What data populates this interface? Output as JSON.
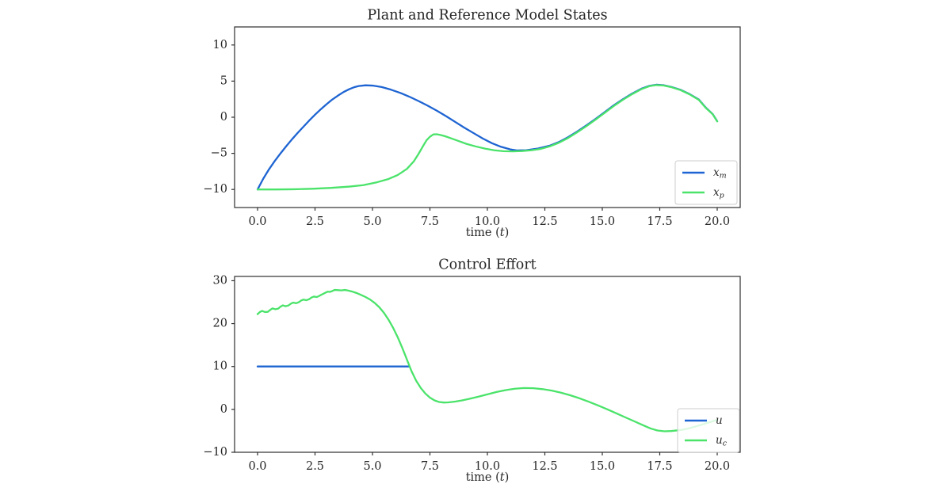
{
  "figure": {
    "background": "#ffffff",
    "text_color": "#262626",
    "spine_color": "#2e2e2e",
    "legend_border_color": "#cccccc",
    "legend_fill": "#ffffff"
  },
  "chart_data": [
    {
      "type": "line",
      "title": "Plant and Reference Model States",
      "xlabel_pre": "time (",
      "xlabel_var": "t",
      "xlabel_post": ")",
      "xlim": [
        -1,
        21
      ],
      "ylim": [
        -12.5,
        12.5
      ],
      "grid": false,
      "legend_position": "lower right",
      "x_tick_values": [
        0,
        2.5,
        5,
        7.5,
        10,
        12.5,
        15,
        17.5,
        20
      ],
      "x_tick_labels": [
        "0.0",
        "2.5",
        "5.0",
        "7.5",
        "10.0",
        "12.5",
        "15.0",
        "17.5",
        "20.0"
      ],
      "y_tick_values": [
        10,
        5,
        0,
        -5,
        -10
      ],
      "y_tick_labels": [
        "10",
        "5",
        "0",
        "−5",
        "−10"
      ],
      "series": [
        {
          "name": "x_m",
          "label_main": "x",
          "label_sub": "m",
          "color": "#1e64d2",
          "points": [
            [
              0,
              -10.0
            ],
            [
              0.25,
              -8.5
            ],
            [
              0.5,
              -7.2
            ],
            [
              0.75,
              -6.05
            ],
            [
              1,
              -5.0
            ],
            [
              1.25,
              -4.0
            ],
            [
              1.5,
              -3.05
            ],
            [
              1.75,
              -2.15
            ],
            [
              2,
              -1.3
            ],
            [
              2.25,
              -0.45
            ],
            [
              2.5,
              0.35
            ],
            [
              2.75,
              1.1
            ],
            [
              3,
              1.8
            ],
            [
              3.25,
              2.45
            ],
            [
              3.5,
              3.0
            ],
            [
              3.75,
              3.5
            ],
            [
              4,
              3.9
            ],
            [
              4.2,
              4.15
            ],
            [
              4.4,
              4.32
            ],
            [
              4.7,
              4.42
            ],
            [
              5,
              4.38
            ],
            [
              5.4,
              4.18
            ],
            [
              5.8,
              3.82
            ],
            [
              6.2,
              3.38
            ],
            [
              6.6,
              2.85
            ],
            [
              7,
              2.25
            ],
            [
              7.4,
              1.6
            ],
            [
              7.8,
              0.9
            ],
            [
              8.2,
              0.15
            ],
            [
              8.6,
              -0.65
            ],
            [
              9,
              -1.45
            ],
            [
              9.4,
              -2.2
            ],
            [
              9.8,
              -2.95
            ],
            [
              10.2,
              -3.6
            ],
            [
              10.6,
              -4.1
            ],
            [
              11,
              -4.45
            ],
            [
              11.3,
              -4.6
            ],
            [
              11.7,
              -4.57
            ],
            [
              12.2,
              -4.33
            ],
            [
              12.7,
              -3.95
            ],
            [
              13.1,
              -3.45
            ],
            [
              13.5,
              -2.78
            ],
            [
              13.9,
              -2.0
            ],
            [
              14.3,
              -1.15
            ],
            [
              14.7,
              -0.25
            ],
            [
              15.1,
              0.7
            ],
            [
              15.5,
              1.65
            ],
            [
              15.9,
              2.5
            ],
            [
              16.3,
              3.28
            ],
            [
              16.7,
              3.95
            ],
            [
              17.05,
              4.35
            ],
            [
              17.35,
              4.5
            ],
            [
              17.65,
              4.44
            ],
            [
              18,
              4.2
            ],
            [
              18.4,
              3.8
            ],
            [
              18.8,
              3.2
            ],
            [
              19.2,
              2.45
            ],
            [
              19.5,
              1.35
            ],
            [
              19.8,
              0.45
            ],
            [
              20,
              -0.55
            ]
          ]
        },
        {
          "name": "x_p",
          "label_main": "x",
          "label_sub": "p",
          "color": "#4be36a",
          "points": [
            [
              0,
              -10.0
            ],
            [
              0.8,
              -10.0
            ],
            [
              1.6,
              -9.97
            ],
            [
              2.4,
              -9.9
            ],
            [
              3.2,
              -9.78
            ],
            [
              4,
              -9.6
            ],
            [
              4.6,
              -9.4
            ],
            [
              5.2,
              -9.0
            ],
            [
              5.7,
              -8.55
            ],
            [
              6.1,
              -8.0
            ],
            [
              6.5,
              -7.15
            ],
            [
              6.8,
              -6.1
            ],
            [
              7.0,
              -5.1
            ],
            [
              7.2,
              -4.0
            ],
            [
              7.35,
              -3.2
            ],
            [
              7.5,
              -2.7
            ],
            [
              7.65,
              -2.38
            ],
            [
              7.8,
              -2.36
            ],
            [
              7.95,
              -2.45
            ],
            [
              8.15,
              -2.62
            ],
            [
              8.45,
              -2.95
            ],
            [
              8.75,
              -3.3
            ],
            [
              9.1,
              -3.7
            ],
            [
              9.5,
              -4.05
            ],
            [
              9.9,
              -4.35
            ],
            [
              10.3,
              -4.58
            ],
            [
              10.7,
              -4.7
            ],
            [
              11.1,
              -4.73
            ],
            [
              11.5,
              -4.68
            ],
            [
              11.9,
              -4.58
            ],
            [
              12.3,
              -4.4
            ],
            [
              12.7,
              -4.05
            ],
            [
              13.1,
              -3.55
            ],
            [
              13.5,
              -2.9
            ],
            [
              13.9,
              -2.1
            ],
            [
              14.3,
              -1.25
            ],
            [
              14.7,
              -0.35
            ],
            [
              15.1,
              0.6
            ],
            [
              15.5,
              1.55
            ],
            [
              15.9,
              2.42
            ],
            [
              16.3,
              3.2
            ],
            [
              16.7,
              3.88
            ],
            [
              17.05,
              4.3
            ],
            [
              17.35,
              4.45
            ],
            [
              17.65,
              4.4
            ],
            [
              18,
              4.16
            ],
            [
              18.4,
              3.76
            ],
            [
              18.8,
              3.16
            ],
            [
              19.2,
              2.4
            ],
            [
              19.5,
              1.3
            ],
            [
              19.8,
              0.42
            ],
            [
              20,
              -0.58
            ]
          ]
        }
      ]
    },
    {
      "type": "line",
      "title": "Control Effort",
      "xlabel_pre": "time (",
      "xlabel_var": "t",
      "xlabel_post": ")",
      "xlim": [
        -1,
        21
      ],
      "ylim": [
        -10,
        31
      ],
      "grid": false,
      "legend_position": "lower right",
      "x_tick_values": [
        0,
        2.5,
        5,
        7.5,
        10,
        12.5,
        15,
        17.5,
        20
      ],
      "x_tick_labels": [
        "0.0",
        "2.5",
        "5.0",
        "7.5",
        "10.0",
        "12.5",
        "15.0",
        "17.5",
        "20.0"
      ],
      "y_tick_values": [
        30,
        20,
        10,
        0,
        -10
      ],
      "y_tick_labels": [
        "30",
        "20",
        "10",
        "0",
        "−10"
      ],
      "series": [
        {
          "name": "u",
          "label_main": "u",
          "label_sub": "",
          "color": "#1e64d2",
          "points": [
            [
              0,
              10
            ],
            [
              6.6,
              10
            ]
          ]
        },
        {
          "name": "u_c",
          "label_main": "u",
          "label_sub": "c",
          "color": "#4be36a",
          "points": [
            [
              0,
              22.2
            ],
            [
              0.1,
              22.7
            ],
            [
              0.2,
              22.95
            ],
            [
              0.32,
              22.7
            ],
            [
              0.45,
              22.75
            ],
            [
              0.55,
              23.2
            ],
            [
              0.65,
              23.55
            ],
            [
              0.78,
              23.35
            ],
            [
              0.9,
              23.5
            ],
            [
              1.0,
              23.95
            ],
            [
              1.1,
              24.25
            ],
            [
              1.22,
              24.05
            ],
            [
              1.35,
              24.25
            ],
            [
              1.45,
              24.65
            ],
            [
              1.55,
              24.9
            ],
            [
              1.68,
              24.75
            ],
            [
              1.8,
              25.0
            ],
            [
              1.9,
              25.4
            ],
            [
              2.0,
              25.6
            ],
            [
              2.12,
              25.45
            ],
            [
              2.25,
              25.7
            ],
            [
              2.35,
              26.1
            ],
            [
              2.45,
              26.3
            ],
            [
              2.58,
              26.2
            ],
            [
              2.7,
              26.5
            ],
            [
              2.78,
              26.75
            ],
            [
              2.88,
              27.0
            ],
            [
              2.95,
              27.2
            ],
            [
              3.05,
              27.45
            ],
            [
              3.15,
              27.4
            ],
            [
              3.25,
              27.6
            ],
            [
              3.35,
              27.85
            ],
            [
              3.5,
              27.8
            ],
            [
              3.65,
              27.75
            ],
            [
              3.8,
              27.85
            ],
            [
              3.95,
              27.7
            ],
            [
              4.1,
              27.5
            ],
            [
              4.3,
              27.15
            ],
            [
              4.5,
              26.7
            ],
            [
              4.7,
              26.2
            ],
            [
              4.9,
              25.6
            ],
            [
              5.1,
              24.8
            ],
            [
              5.3,
              23.8
            ],
            [
              5.5,
              22.5
            ],
            [
              5.7,
              20.9
            ],
            [
              5.9,
              19.0
            ],
            [
              6.1,
              16.8
            ],
            [
              6.3,
              14.3
            ],
            [
              6.5,
              11.6
            ],
            [
              6.7,
              8.9
            ],
            [
              6.9,
              6.7
            ],
            [
              7.1,
              5.0
            ],
            [
              7.3,
              3.7
            ],
            [
              7.5,
              2.75
            ],
            [
              7.7,
              2.1
            ],
            [
              7.9,
              1.72
            ],
            [
              8.1,
              1.6
            ],
            [
              8.3,
              1.63
            ],
            [
              8.6,
              1.82
            ],
            [
              8.9,
              2.1
            ],
            [
              9.2,
              2.45
            ],
            [
              9.6,
              2.95
            ],
            [
              10.0,
              3.5
            ],
            [
              10.4,
              4.05
            ],
            [
              10.8,
              4.5
            ],
            [
              11.2,
              4.82
            ],
            [
              11.6,
              4.98
            ],
            [
              12.0,
              4.93
            ],
            [
              12.4,
              4.72
            ],
            [
              12.8,
              4.38
            ],
            [
              13.2,
              3.9
            ],
            [
              13.6,
              3.3
            ],
            [
              14.0,
              2.6
            ],
            [
              14.4,
              1.8
            ],
            [
              14.8,
              0.95
            ],
            [
              15.2,
              0.05
            ],
            [
              15.6,
              -0.9
            ],
            [
              16.0,
              -1.85
            ],
            [
              16.4,
              -2.8
            ],
            [
              16.8,
              -3.75
            ],
            [
              17.1,
              -4.45
            ],
            [
              17.4,
              -4.92
            ],
            [
              17.7,
              -5.1
            ],
            [
              18.0,
              -5.05
            ],
            [
              18.4,
              -4.82
            ],
            [
              18.8,
              -4.38
            ],
            [
              19.2,
              -3.78
            ],
            [
              19.6,
              -3.1
            ],
            [
              20,
              -2.45
            ]
          ]
        }
      ]
    }
  ]
}
